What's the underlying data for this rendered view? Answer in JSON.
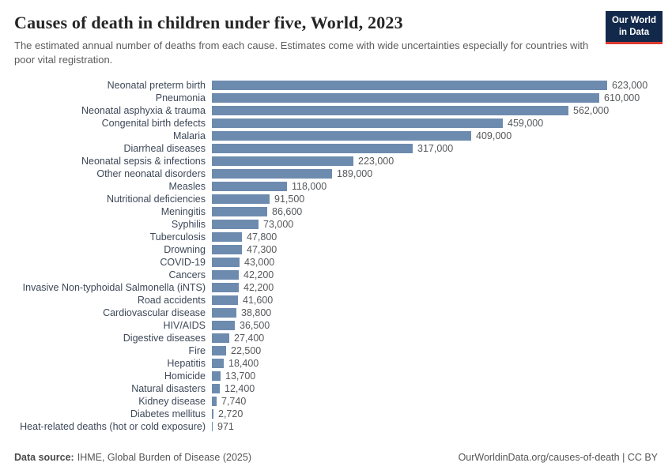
{
  "header": {
    "title": "Causes of death in children under five, World, 2023",
    "subtitle": "The estimated annual number of deaths from each cause. Estimates come with wide uncertainties especially for countries with poor vital registration."
  },
  "logo": {
    "line1": "Our World",
    "line2": "in Data"
  },
  "footer": {
    "source_label": "Data source:",
    "source_text": "IHME, Global Burden of Disease (2025)",
    "right_text": "OurWorldinData.org/causes-of-death | CC BY"
  },
  "chart_data": {
    "type": "bar",
    "orientation": "horizontal",
    "title": "Causes of death in children under five, World, 2023",
    "xlabel": "",
    "ylabel": "",
    "xlim": [
      0,
      623000
    ],
    "grid": false,
    "bar_color": "#6d8bae",
    "categories": [
      "Neonatal preterm birth",
      "Pneumonia",
      "Neonatal asphyxia & trauma",
      "Congenital birth defects",
      "Malaria",
      "Diarrheal diseases",
      "Neonatal sepsis & infections",
      "Other neonatal disorders",
      "Measles",
      "Nutritional deficiencies",
      "Meningitis",
      "Syphilis",
      "Tuberculosis",
      "Drowning",
      "COVID-19",
      "Cancers",
      "Invasive Non-typhoidal Salmonella (iNTS)",
      "Road accidents",
      "Cardiovascular disease",
      "HIV/AIDS",
      "Digestive diseases",
      "Fire",
      "Hepatitis",
      "Homicide",
      "Natural disasters",
      "Kidney disease",
      "Diabetes mellitus",
      "Heat-related deaths (hot or cold exposure)"
    ],
    "values": [
      623000,
      610000,
      562000,
      459000,
      409000,
      317000,
      223000,
      189000,
      118000,
      91500,
      86600,
      73000,
      47800,
      47300,
      43000,
      42200,
      42200,
      41600,
      38800,
      36500,
      27400,
      22500,
      18400,
      13700,
      12400,
      7740,
      2720,
      971
    ],
    "value_labels": [
      "623,000",
      "610,000",
      "562,000",
      "459,000",
      "409,000",
      "317,000",
      "223,000",
      "189,000",
      "118,000",
      "91,500",
      "86,600",
      "73,000",
      "47,800",
      "47,300",
      "43,000",
      "42,200",
      "42,200",
      "41,600",
      "38,800",
      "36,500",
      "27,400",
      "22,500",
      "18,400",
      "13,700",
      "12,400",
      "7,740",
      "2,720",
      "971"
    ]
  }
}
